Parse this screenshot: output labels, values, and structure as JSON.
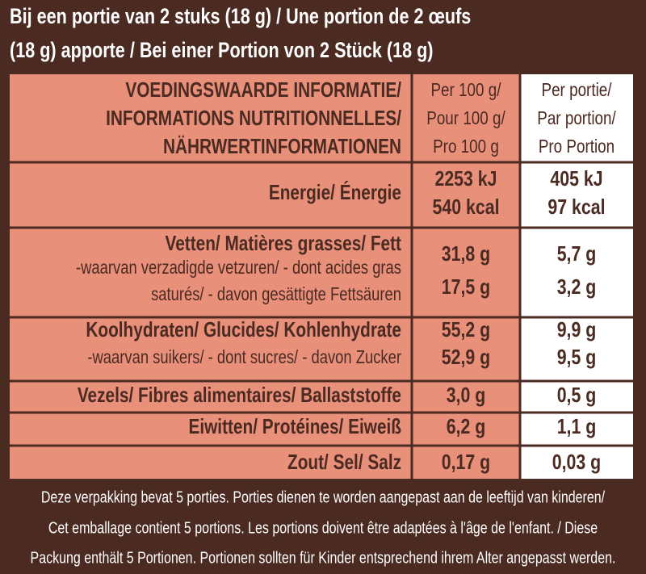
{
  "header": {
    "lines": [
      "Bij een portie van 2 stuks (18 g) / Une portion de 2 œufs",
      "(18 g) apporte / Bei einer Portion von 2 Stück (18 g)"
    ]
  },
  "table": {
    "columns": [
      [
        "VOEDINGSWAARDE INFORMATIE/",
        "INFORMATIONS NUTRITIONNELLES/",
        "NÄHRWERTINFORMATIONEN"
      ],
      [
        "Per 100 g/",
        "Pour 100 g/",
        "Pro 100 g"
      ],
      [
        "Per portie/",
        "Par portion/",
        "Pro Portion"
      ]
    ],
    "rows": [
      {
        "label": [
          "Energie/ Énergie"
        ],
        "per_100g": [
          "2253 kJ",
          "540 kcal"
        ],
        "per_portion": [
          "405 kJ",
          "97 kcal"
        ]
      },
      {
        "label": [
          "Vetten/ Matières grasses/ Fett",
          "-waarvan verzadigde vetzuren/ - dont acides gras",
          "saturés/ - davon gesättigte Fettsäuren"
        ],
        "per_100g": [
          "31,8 g",
          "17,5 g"
        ],
        "per_portion": [
          "5,7 g",
          "3,2 g"
        ]
      },
      {
        "label": [
          "Koolhydraten/ Glucides/ Kohlenhydrate",
          "-waarvan suikers/ - dont sucres/ - davon Zucker"
        ],
        "per_100g": [
          "55,2 g",
          "52,9 g"
        ],
        "per_portion": [
          "9,9 g",
          "9,5 g"
        ]
      },
      {
        "label": [
          "Vezels/ Fibres alimentaires/ Ballaststoffe"
        ],
        "per_100g": [
          "3,0 g"
        ],
        "per_portion": [
          "0,5 g"
        ]
      },
      {
        "label": [
          "Eiwitten/ Protéines/ Eiweiß"
        ],
        "per_100g": [
          "6,2 g"
        ],
        "per_portion": [
          "1,1 g"
        ]
      },
      {
        "label": [
          "Zout/ Sel/ Salz"
        ],
        "per_100g": [
          "0,17 g"
        ],
        "per_portion": [
          "0,03 g"
        ]
      }
    ]
  },
  "footer": {
    "lines": [
      "Deze verpakking bevat 5 porties. Porties dienen te worden aangepast aan de leeftijd van kinderen/",
      "Cet emballage contient 5 portions. Les portions doivent être adaptées à l'âge de l'enfant. /  Diese",
      "Packung enthält 5 Portionen. Portionen sollten für Kinder entsprechend ihrem Alter angepasst werden."
    ]
  }
}
